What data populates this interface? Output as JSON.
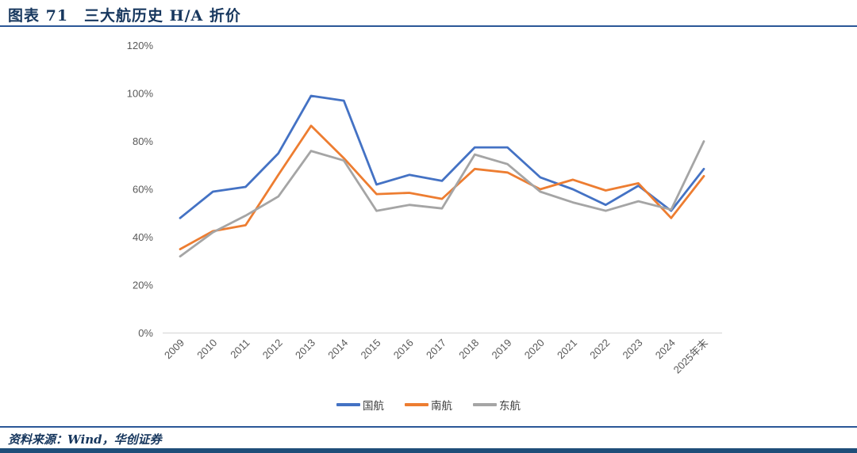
{
  "header": {
    "title": "图表 71　三大航历史 H/A 折价"
  },
  "chart_data": {
    "type": "line",
    "title": "三大航历史 H/A 折价",
    "categories": [
      "2009",
      "2010",
      "2011",
      "2012",
      "2013",
      "2014",
      "2015",
      "2016",
      "2017",
      "2018",
      "2019",
      "2020",
      "2021",
      "2022",
      "2023",
      "2024",
      "2025年末"
    ],
    "series": [
      {
        "name": "国航",
        "color": "#4472C4",
        "values": [
          48,
          59,
          61,
          75,
          99,
          97,
          62,
          66,
          63.5,
          77.5,
          77.5,
          65,
          60,
          53.5,
          61.5,
          51,
          68.5
        ]
      },
      {
        "name": "南航",
        "color": "#ED7D31",
        "values": [
          35,
          42.5,
          45,
          66,
          86.5,
          73,
          58,
          58.5,
          56,
          68.5,
          67,
          60,
          64,
          59.5,
          62.5,
          48,
          65.5
        ]
      },
      {
        "name": "东航",
        "color": "#A5A5A5",
        "values": [
          32,
          42,
          49,
          57,
          76,
          72,
          51,
          53.5,
          52,
          74.5,
          70.5,
          59,
          54.5,
          51,
          55,
          51.5,
          80
        ]
      }
    ],
    "ylabel": "",
    "xlabel": "",
    "ylim": [
      0,
      120
    ],
    "y_ticks": [
      "0%",
      "20%",
      "40%",
      "60%",
      "80%",
      "100%",
      "120%"
    ],
    "grid": "off",
    "legend_position": "bottom"
  },
  "footer": {
    "source": "资料来源：Wind，华创证券"
  },
  "style": {
    "tick_text_color": "#595959",
    "axis_line_color": "#D9D9D9",
    "accent_navy": "#17375E"
  }
}
